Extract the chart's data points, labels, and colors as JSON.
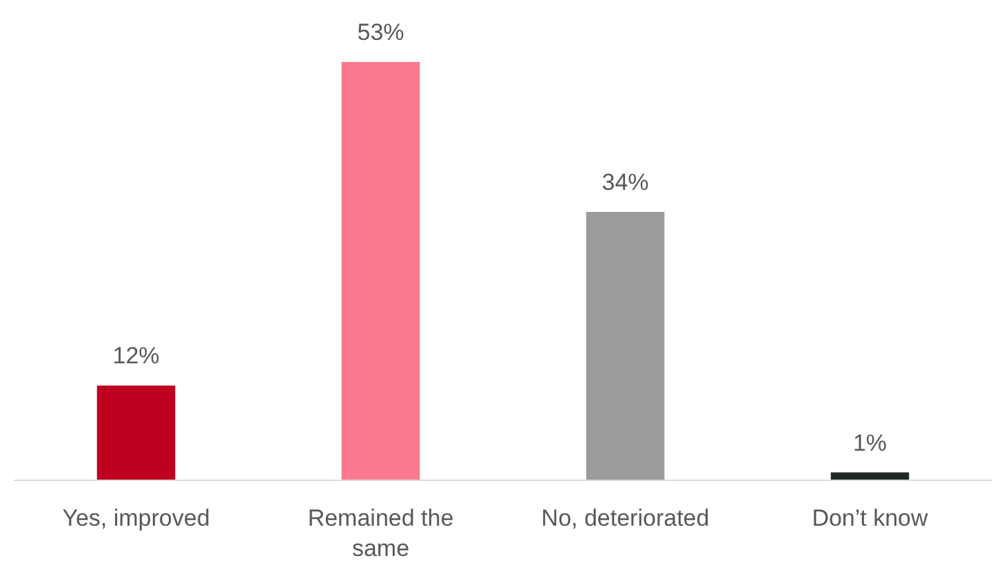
{
  "chart_data": {
    "type": "bar",
    "categories": [
      "Yes, improved",
      "Remained the same",
      "No, deteriorated",
      "Don’t know"
    ],
    "values": [
      12,
      53,
      34,
      1
    ],
    "colors": [
      "#c00020",
      "#fb7a8f",
      "#9b9b9b",
      "#1f2a28"
    ],
    "value_labels": [
      "12%",
      "53%",
      "34%",
      "1%"
    ]
  }
}
